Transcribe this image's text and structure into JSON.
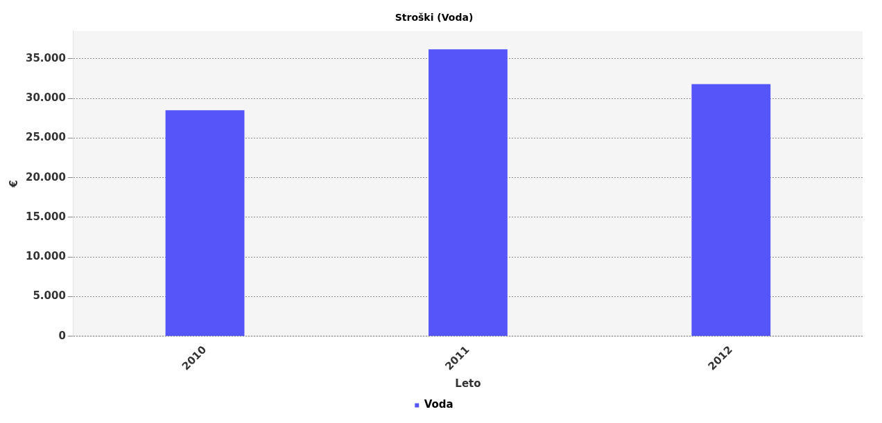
{
  "chart_data": {
    "type": "bar",
    "title": "Stroški (Voda)",
    "xlabel": "Leto",
    "ylabel": "€",
    "categories": [
      "2010",
      "2011",
      "2012"
    ],
    "series": [
      {
        "name": "Voda",
        "color": "#5555f9",
        "values": [
          28500,
          36200,
          31800
        ]
      }
    ],
    "ylim": [
      0,
      38500
    ],
    "yticks": [
      {
        "value": 0,
        "label": "0"
      },
      {
        "value": 5000,
        "label": "5.000"
      },
      {
        "value": 10000,
        "label": "10.000"
      },
      {
        "value": 15000,
        "label": "15.000"
      },
      {
        "value": 20000,
        "label": "20.000"
      },
      {
        "value": 25000,
        "label": "25.000"
      },
      {
        "value": 30000,
        "label": "30.000"
      },
      {
        "value": 35000,
        "label": "35.000"
      }
    ],
    "grid": "y",
    "legend": "bottom"
  }
}
